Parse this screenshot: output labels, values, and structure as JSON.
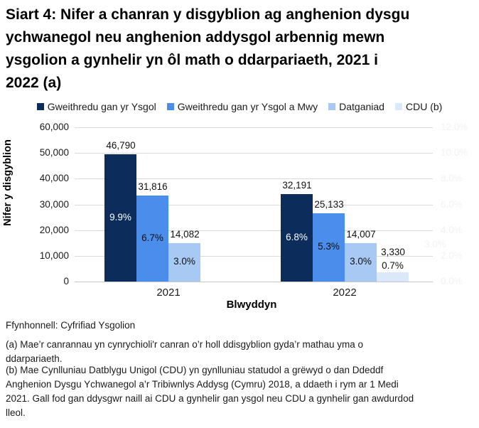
{
  "title_lines": [
    "Siart 4: Nifer a chanran y disgyblion ag anghenion dysgu",
    "ychwanegol neu anghenion addysgol arbennig mewn",
    "ysgolion a gynhelir yn ôl math o ddarpariaeth, 2021 i",
    "2022 (a)"
  ],
  "legend": [
    {
      "label": "Gweithredu gan yr Ysgol",
      "color": "#0c2c5c"
    },
    {
      "label": "Gweithredu gan yr Ysgol a Mwy",
      "color": "#4a8deb"
    },
    {
      "label": "Datganiad",
      "color": "#a7c9f3"
    },
    {
      "label": "CDU (b)",
      "color": "#dbe8f9"
    }
  ],
  "chart_data": {
    "type": "bar",
    "title": "Siart 4: Nifer a chanran y disgyblion ag anghenion dysgu ychwanegol neu anghenion addysgol arbennig mewn ysgolion a gynhelir yn ôl math o ddarpariaeth, 2021 i 2022 (a)",
    "categories": [
      "2021",
      "2022"
    ],
    "series": [
      {
        "name": "Gweithredu gan yr Ysgol",
        "color": "#0c2c5c",
        "counts": [
          46790,
          32191
        ],
        "count_labels": [
          "46,790",
          "32,191"
        ],
        "pct": [
          9.9,
          6.8
        ],
        "pct_labels": [
          "9.9%",
          "6.8%"
        ],
        "pct_label_color": "#ffffff"
      },
      {
        "name": "Gweithredu gan yr Ysgol a Mwy",
        "color": "#4a8deb",
        "counts": [
          31816,
          25133
        ],
        "count_labels": [
          "31,816",
          "25,133"
        ],
        "pct": [
          6.7,
          5.3
        ],
        "pct_labels": [
          "6.7%",
          "5.3%"
        ],
        "pct_label_color": "#111111"
      },
      {
        "name": "Datganiad",
        "color": "#a7c9f3",
        "counts": [
          14082,
          14007
        ],
        "count_labels": [
          "14,082",
          "14,007"
        ],
        "pct": [
          3.0,
          3.0
        ],
        "pct_labels": [
          "3.0%",
          "3.0%"
        ],
        "pct_label_color": "#111111"
      },
      {
        "name": "CDU (b)",
        "color": "#dbe8f9",
        "counts": [
          null,
          3330
        ],
        "count_labels": [
          null,
          "3,330"
        ],
        "pct": [
          null,
          0.7
        ],
        "pct_labels": [
          null,
          "0.7%"
        ],
        "pct_label_color": "#111111"
      }
    ],
    "xlabel": "Blwyddyn",
    "ylabel_left": "Nifer y disgyblion",
    "y_axis_left": {
      "ticks": [
        "60,000",
        "50,000",
        "40,000",
        "30,000",
        "20,000",
        "10,000",
        "0"
      ],
      "min": 0,
      "max": 60000
    },
    "y_axis_right": {
      "ticks": [
        "12.0%",
        "10.0%",
        "8.0%",
        "6.0%",
        "4.0%",
        "2.0%",
        "0.0%"
      ],
      "min": 0,
      "max": 12
    },
    "stray_label": "3.0%",
    "grid": true,
    "legend_position": "top"
  },
  "footnotes": {
    "source": "Ffynhonnell: Cyfrifiad Ysgolion",
    "note_a_lines": [
      "(a) Mae’r canrannau yn cynrychioli'r canran o’r holl ddisgyblion gyda’r mathau yma o",
      "ddarpariaeth."
    ],
    "note_b_lines": [
      "(b) Mae Cynlluniau Datblygu Unigol (CDU) yn gynlluniau statudol a grëwyd o dan Ddeddf",
      "Anghenion Dysgu Ychwanegol a’r Tribiwnlys Addysg (Cymru) 2018, a ddaeth i rym ar 1 Medi",
      "2021. Gall fod gan ddysgwr naill ai CDU a gynhelir gan ysgol neu CDU a gynhelir gan awdurdod",
      "lleol."
    ]
  }
}
